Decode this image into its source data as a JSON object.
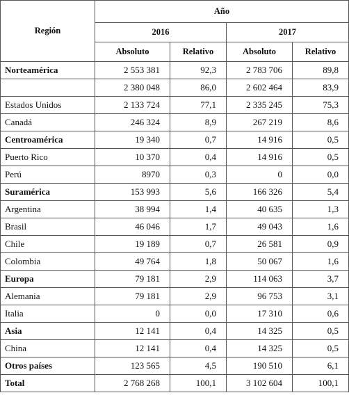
{
  "table": {
    "header": {
      "region": "Región",
      "year": "Año",
      "years": [
        "2016",
        "2017"
      ],
      "subheaders": [
        "Absoluto",
        "Relativo",
        "Absoluto",
        "Relativo"
      ]
    },
    "rows": [
      {
        "region": "Norteamérica",
        "bold": true,
        "cells": [
          "2 553 381",
          "92,3",
          "2 783 706",
          "89,8"
        ]
      },
      {
        "region": null,
        "cells": [
          "2 380 048",
          "86,0",
          "2 602 464",
          "83,9"
        ]
      },
      {
        "region": "Estados Unidos",
        "cells": [
          "2 133 724",
          "77,1",
          "2 335 245",
          "75,3"
        ]
      },
      {
        "region": "Canadá",
        "cells": [
          "246 324",
          "8,9",
          "267 219",
          "8,6"
        ]
      },
      {
        "region": "Centroamérica",
        "bold": true,
        "cells": [
          "19 340",
          "0,7",
          "14 916",
          "0,5"
        ]
      },
      {
        "region": "Puerto Rico",
        "cells": [
          "10 370",
          "0,4",
          "14 916",
          "0,5"
        ]
      },
      {
        "region": "Perú",
        "cells": [
          "8970",
          "0,3",
          "0",
          "0,0"
        ]
      },
      {
        "region": "Suramérica",
        "bold": true,
        "cells": [
          "153 993",
          "5,6",
          "166 326",
          "5,4"
        ]
      },
      {
        "region": "Argentina",
        "cells": [
          "38 994",
          "1,4",
          "40 635",
          "1,3"
        ]
      },
      {
        "region": "Brasil",
        "cells": [
          "46 046",
          "1,7",
          "49 043",
          "1,6"
        ]
      },
      {
        "region": "Chile",
        "cells": [
          "19 189",
          "0,7",
          "26 581",
          "0,9"
        ]
      },
      {
        "region": "Colombia",
        "cells": [
          "49 764",
          "1,8",
          "50 067",
          "1,6"
        ]
      },
      {
        "region": "Europa",
        "bold": true,
        "cells": [
          "79 181",
          "2,9",
          "114 063",
          "3,7"
        ]
      },
      {
        "region": "Alemania",
        "cells": [
          "79 181",
          "2,9",
          "96 753",
          "3,1"
        ]
      },
      {
        "region": "Italia",
        "cells": [
          "0",
          "0,0",
          "17 310",
          "0,6"
        ]
      },
      {
        "region": "Asia",
        "bold": true,
        "cells": [
          "12 141",
          "0,4",
          "14 325",
          "0,5"
        ]
      },
      {
        "region": "China",
        "cells": [
          "12 141",
          "0,4",
          "14 325",
          "0,5"
        ]
      },
      {
        "region": "Otros países",
        "bold": true,
        "cells": [
          "123 565",
          "4,5",
          "190 510",
          "6,1"
        ]
      },
      {
        "region": "Total",
        "bold": true,
        "cells": [
          "2 768 268",
          "100,1",
          "3 102 604",
          "100,1"
        ]
      }
    ]
  }
}
